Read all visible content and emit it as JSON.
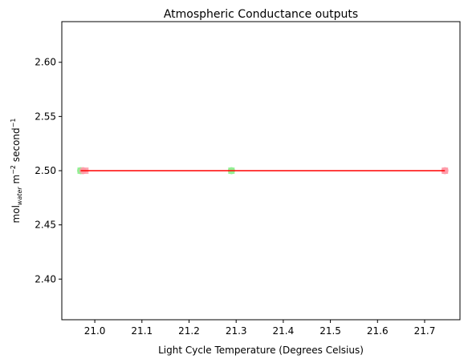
{
  "chart_data": {
    "type": "scatter",
    "title": "Atmospheric Conductance outputs",
    "xlabel": "Light Cycle Temperature (Degrees Celsius)",
    "ylabel": {
      "prefix": "mol",
      "subscript": "water",
      "middle": " m",
      "sup1": "−2",
      "suffix": " second",
      "sup2": "−1"
    },
    "xlim": [
      20.93,
      21.775
    ],
    "ylim": [
      2.3625,
      2.6375
    ],
    "xticks": [
      21.0,
      21.1,
      21.2,
      21.3,
      21.4,
      21.5,
      21.6,
      21.7
    ],
    "xtick_labels": [
      "21.0",
      "21.1",
      "21.2",
      "21.3",
      "21.4",
      "21.5",
      "21.6",
      "21.7"
    ],
    "yticks": [
      2.4,
      2.45,
      2.5,
      2.55,
      2.6
    ],
    "ytick_labels": [
      "2.40",
      "2.45",
      "2.50",
      "2.55",
      "2.60"
    ],
    "grid": false,
    "series": [
      {
        "marker": "circle",
        "color": "#90ee90",
        "x": [
          20.97,
          21.29
        ],
        "y": [
          2.5,
          2.5
        ]
      },
      {
        "marker": "square",
        "color": "#90ee90",
        "x": [
          20.97,
          21.29
        ],
        "y": [
          2.5,
          2.5
        ]
      },
      {
        "marker": "circle",
        "color": "#ff9aa8",
        "x": [
          20.975,
          21.743
        ],
        "y": [
          2.5,
          2.5
        ]
      },
      {
        "marker": "square",
        "color": "#ff9aa8",
        "x": [
          20.98,
          21.743
        ],
        "y": [
          2.5,
          2.5
        ]
      }
    ],
    "lines": [
      {
        "color": "#ff0000",
        "x": [
          20.97,
          21.743
        ],
        "y": [
          2.5,
          2.5
        ]
      }
    ]
  }
}
